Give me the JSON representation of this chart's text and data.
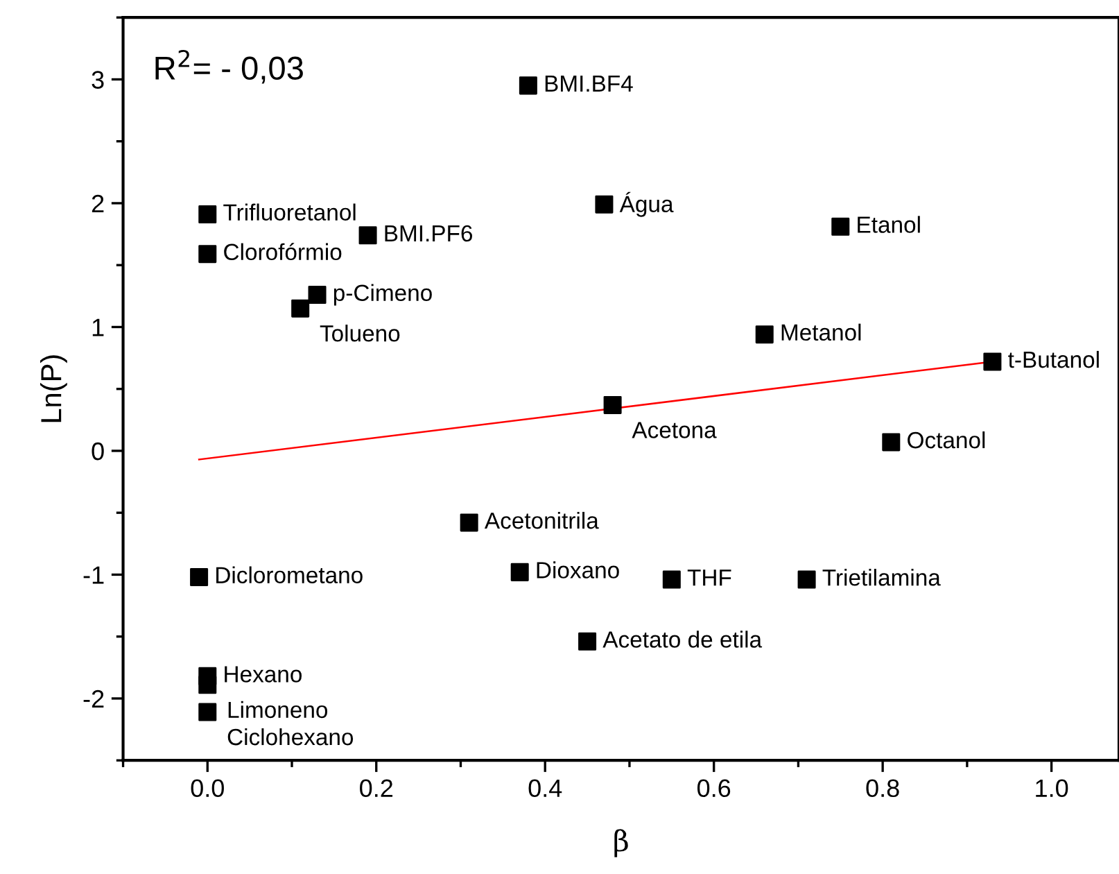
{
  "chart_data": {
    "type": "scatter",
    "xlabel": "β",
    "ylabel": "Ln(P)",
    "xlim": [
      -0.1,
      1.08
    ],
    "ylim": [
      -2.5,
      3.5
    ],
    "xticks": [
      {
        "value": 0,
        "label": "0.0"
      },
      {
        "value": 0.2,
        "label": "0.2"
      },
      {
        "value": 0.4,
        "label": "0.4"
      },
      {
        "value": 0.6,
        "label": "0.6"
      },
      {
        "value": 0.8,
        "label": "0.8"
      },
      {
        "value": 1,
        "label": "1.0"
      }
    ],
    "yticks": [
      -2,
      -1,
      0,
      1,
      2,
      3
    ],
    "grid": false,
    "legend": false,
    "marker": "square",
    "series": [
      {
        "color": "#000000",
        "x": [
          0.38,
          0.0,
          0.0,
          0.19,
          0.13,
          0.11,
          0.47,
          0.75,
          0.66,
          0.93,
          0.48,
          0.81,
          0.31,
          -0.01,
          0.37,
          0.55,
          0.71,
          0.45,
          0.0,
          0.0,
          0.0
        ],
        "values": [
          2.95,
          1.91,
          1.59,
          1.74,
          1.26,
          1.15,
          1.99,
          1.81,
          0.94,
          0.72,
          0.37,
          0.07,
          -0.58,
          -1.02,
          -0.98,
          -1.04,
          -1.04,
          -1.54,
          -1.82,
          -1.89,
          -2.11
        ]
      },
      {
        "type": "line",
        "color": "#ff0000",
        "marker": "none",
        "x": [
          -0.01,
          0.93
        ],
        "values": [
          -0.07,
          0.72
        ]
      }
    ],
    "annotations": [
      "R$^{2}$= - 0,03",
      {
        "text": "BMI.BF4",
        "x": 0.38,
        "y": 2.95
      },
      {
        "text": "Trifluoretanol",
        "x": 0.0,
        "y": 1.91
      },
      {
        "text": "Clorofórmio",
        "x": 0.0,
        "y": 1.59
      },
      {
        "text": "BMI.PF6",
        "x": 0.19,
        "y": 1.74
      },
      {
        "text": "p-Cimeno",
        "x": 0.13,
        "y": 1.26
      },
      {
        "text": "Tolueno",
        "x": 0.11,
        "y": 1.15
      },
      {
        "text": "Água",
        "x": 0.47,
        "y": 1.99
      },
      {
        "text": "Etanol",
        "x": 0.75,
        "y": 1.81
      },
      {
        "text": "Metanol",
        "x": 0.66,
        "y": 0.94
      },
      {
        "text": "t-Butanol",
        "x": 0.93,
        "y": 0.72
      },
      {
        "text": "Acetona",
        "x": 0.48,
        "y": 0.37
      },
      {
        "text": "Octanol",
        "x": 0.81,
        "y": 0.07
      },
      {
        "text": "Acetonitrila",
        "x": 0.31,
        "y": -0.58
      },
      {
        "text": "Diclorometano",
        "x": -0.01,
        "y": -1.02
      },
      {
        "text": "Dioxano",
        "x": 0.37,
        "y": -0.98
      },
      {
        "text": "THF",
        "x": 0.55,
        "y": -1.04
      },
      {
        "text": "Trietilamina",
        "x": 0.71,
        "y": -1.04
      },
      {
        "text": "Acetato de etila",
        "x": 0.45,
        "y": -1.54
      },
      {
        "text": "Hexano",
        "x": 0.0,
        "y": -1.82
      },
      {
        "text": "Limoneno",
        "x": 0.0,
        "y": -1.89
      },
      {
        "text": "Ciclohexano",
        "x": 0.0,
        "y": -2.11
      }
    ]
  }
}
